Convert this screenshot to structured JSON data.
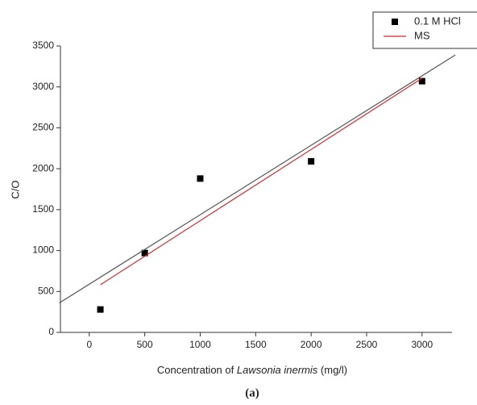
{
  "chart_data": {
    "type": "scatter",
    "xlabel": [
      "Concentration of ",
      "Lawsonia inermis",
      " (mg/l)"
    ],
    "ylabel": "C/O",
    "caption": "(a)",
    "xlim": [
      -260,
      3270
    ],
    "xticks": [
      0,
      500,
      1000,
      1500,
      2000,
      2500,
      3000
    ],
    "ylim": [
      0,
      3500
    ],
    "yticks": [
      0,
      500,
      1000,
      1500,
      2000,
      2500,
      3000,
      3500
    ],
    "series": [
      {
        "name": "0.1 M HCl",
        "kind": "markers",
        "color": "#000000",
        "x": [
          100,
          500,
          1000,
          2000,
          3000
        ],
        "values": [
          280,
          970,
          1880,
          2090,
          3070
        ]
      },
      {
        "name": "MS",
        "kind": "line",
        "color": "#d62728",
        "x": [
          100,
          3000
        ],
        "values": [
          582,
          3106
        ]
      },
      {
        "kind": "line",
        "color": "#555555",
        "x": [
          -270,
          3300
        ],
        "values": [
          360,
          3390
        ]
      }
    ]
  }
}
